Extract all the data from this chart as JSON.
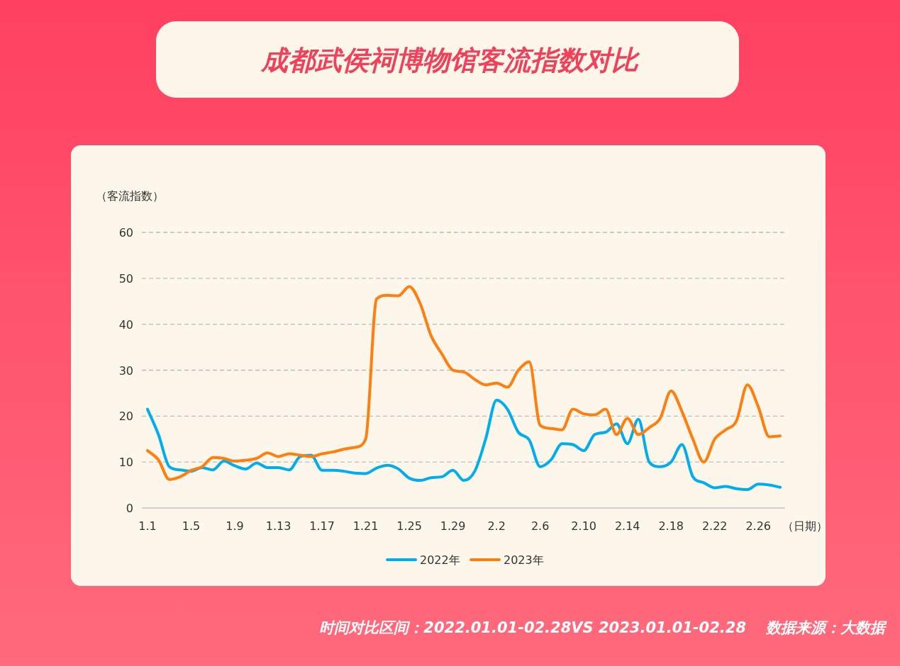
{
  "chart_data": {
    "type": "line",
    "title": "成都武侯祠博物馆客流指数对比",
    "ylabel": "（客流指数）",
    "xlabel": "（日期）",
    "annotations": [
      "时间对比区间：2022.01.01-02.28VS 2023.01.01-02.28",
      "数据来源：大数据"
    ],
    "categories": [
      "1.1",
      null,
      null,
      null,
      "1.5",
      null,
      null,
      null,
      "1.9",
      null,
      null,
      null,
      "1.13",
      null,
      null,
      null,
      "1.17",
      null,
      null,
      null,
      "1.21",
      null,
      null,
      null,
      "1.25",
      null,
      null,
      null,
      "1.29",
      null,
      null,
      null,
      "2.2",
      null,
      null,
      null,
      "2.6",
      null,
      null,
      null,
      "2.10",
      null,
      null,
      null,
      "2.14",
      null,
      null,
      null,
      "2.18",
      null,
      null,
      null,
      "2.22",
      null,
      null,
      null,
      "2.26",
      null,
      null
    ],
    "series": [
      {
        "name": "2022年",
        "color": "#00aeef",
        "values": [
          21.5,
          16,
          9,
          8.3,
          8,
          8.8,
          8.3,
          10.2,
          9.2,
          8.5,
          9.8,
          8.8,
          8.8,
          8.3,
          11.2,
          11.5,
          8.2,
          8.2,
          8,
          7.6,
          7.5,
          8.7,
          9.3,
          8.5,
          6.5,
          6,
          6.6,
          6.8,
          8.2,
          6,
          8,
          15,
          23.5,
          21.5,
          16.5,
          14.8,
          9,
          10.5,
          14,
          13.8,
          12.5,
          16,
          16.5,
          18.3,
          14,
          19.3,
          10,
          9,
          10,
          13.8,
          6.8,
          5.5,
          4.4,
          4.7,
          4.2,
          4,
          5.2,
          5,
          4.5
        ]
      },
      {
        "name": "2023年",
        "color": "#ff7f0e",
        "values": [
          12.5,
          10.5,
          6.2,
          6.8,
          8.2,
          9,
          11,
          10.8,
          10.2,
          10.4,
          10.8,
          12,
          11.2,
          11.8,
          11.5,
          11.2,
          11.8,
          12.2,
          12.8,
          13.2,
          15,
          45.5,
          46.3,
          46.2,
          48.2,
          44.5,
          37.5,
          33.5,
          30,
          29.6,
          28,
          26.8,
          27.2,
          26.3,
          30,
          31.8,
          18,
          17.3,
          17,
          21.5,
          20.5,
          20.3,
          21.5,
          16,
          19.5,
          16,
          17.5,
          19.5,
          25.5,
          21,
          15,
          10,
          15,
          17,
          19,
          26.8,
          22,
          15.5,
          15.7
        ]
      }
    ],
    "ylim": [
      0,
      60
    ],
    "yticks": [
      0,
      10,
      20,
      30,
      40,
      50,
      60
    ],
    "grid": "y",
    "legend": "bottom",
    "marker": "none",
    "line_style": "solid"
  }
}
